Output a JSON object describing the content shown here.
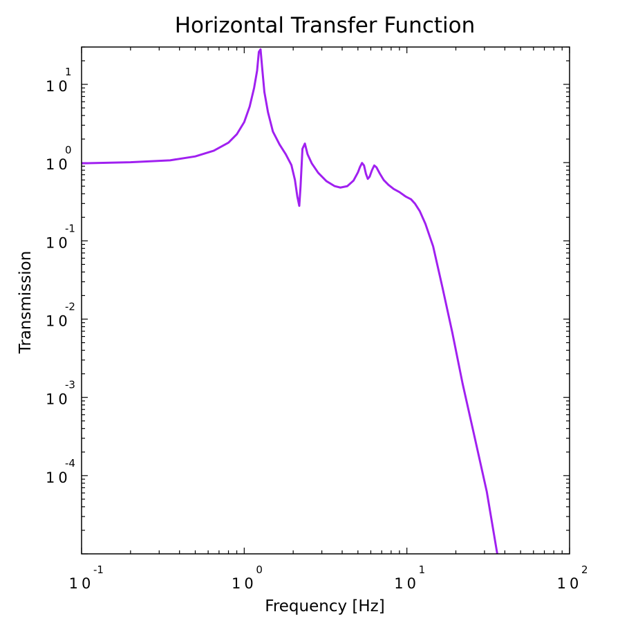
{
  "chart_data": {
    "type": "line",
    "title": "Horizontal Transfer Function",
    "xlabel": "Frequency [Hz]",
    "ylabel": "Transmission",
    "xscale": "log",
    "yscale": "log",
    "xlim": [
      0.1,
      100
    ],
    "ylim": [
      1e-05,
      30
    ],
    "grid": false,
    "legend": "none",
    "x_ticks": [
      {
        "base": "10",
        "exp": "-1"
      },
      {
        "base": "10",
        "exp": "0"
      },
      {
        "base": "10",
        "exp": "1"
      },
      {
        "base": "10",
        "exp": "2"
      }
    ],
    "y_ticks": [
      {
        "base": "10",
        "exp": "1"
      },
      {
        "base": "10",
        "exp": "0"
      },
      {
        "base": "10",
        "exp": "-1"
      },
      {
        "base": "10",
        "exp": "-2"
      },
      {
        "base": "10",
        "exp": "-3"
      },
      {
        "base": "10",
        "exp": "-4"
      }
    ],
    "series": [
      {
        "color": "#a020f0",
        "x": [
          0.1,
          0.2,
          0.35,
          0.5,
          0.65,
          0.8,
          0.9,
          1.0,
          1.08,
          1.15,
          1.2,
          1.23,
          1.26,
          1.29,
          1.33,
          1.4,
          1.5,
          1.65,
          1.8,
          1.95,
          2.05,
          2.12,
          2.18,
          2.22,
          2.28,
          2.36,
          2.45,
          2.6,
          2.85,
          3.2,
          3.6,
          3.9,
          4.3,
          4.7,
          5.0,
          5.15,
          5.3,
          5.45,
          5.6,
          5.75,
          5.9,
          6.1,
          6.3,
          6.5,
          6.8,
          7.2,
          7.7,
          8.3,
          9.0,
          9.8,
          10.6,
          11.2,
          12.0,
          13.0,
          14.5,
          16.5,
          19.0,
          22.0,
          26.0,
          31.0,
          36.0
        ],
        "y": [
          0.98,
          1.01,
          1.07,
          1.2,
          1.42,
          1.8,
          2.3,
          3.3,
          5.2,
          9.0,
          15.0,
          26.0,
          28.0,
          16.0,
          8.0,
          4.4,
          2.5,
          1.7,
          1.28,
          0.93,
          0.6,
          0.37,
          0.28,
          0.5,
          1.5,
          1.75,
          1.28,
          0.98,
          0.74,
          0.58,
          0.5,
          0.48,
          0.5,
          0.59,
          0.75,
          0.88,
          0.99,
          0.92,
          0.72,
          0.62,
          0.66,
          0.8,
          0.92,
          0.87,
          0.73,
          0.6,
          0.52,
          0.46,
          0.42,
          0.37,
          0.34,
          0.3,
          0.24,
          0.165,
          0.085,
          0.026,
          0.0068,
          0.0015,
          0.00032,
          6.2e-05,
          9.8e-06
        ]
      }
    ]
  }
}
